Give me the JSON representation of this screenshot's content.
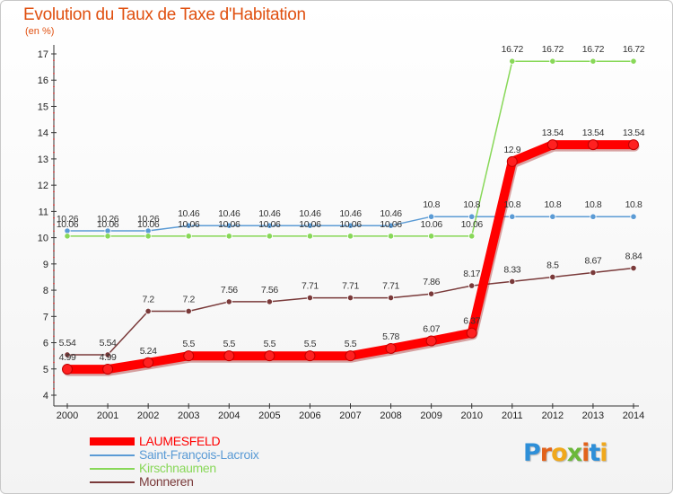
{
  "header": {
    "title": "Evolution du Taux de Taxe d'Habitation",
    "subtitle": "(en %)"
  },
  "logo": {
    "text": "Proxiti",
    "letter_colors": [
      "#2e8fd8",
      "#e2621b",
      "#f0a81c",
      "#6bb83a",
      "#e2621b",
      "#2e8fd8",
      "#f0a81c"
    ]
  },
  "chart_data": {
    "type": "line",
    "title": "Evolution du Taux de Taxe d'Habitation",
    "ylabel": "(en %)",
    "xlabel": "",
    "x": [
      "2000",
      "2001",
      "2002",
      "2003",
      "2004",
      "2005",
      "2006",
      "2007",
      "2008",
      "2009",
      "2010",
      "2011",
      "2012",
      "2013",
      "2014"
    ],
    "ylim": [
      4,
      17
    ],
    "yticks": [
      4,
      5,
      6,
      7,
      8,
      9,
      10,
      11,
      12,
      13,
      14,
      15,
      16,
      17
    ],
    "grid": false,
    "legend_position": "bottom-left",
    "series": [
      {
        "name": "LAUMESFELD",
        "color": "#ff0000",
        "emphasis": true,
        "values": [
          4.99,
          4.99,
          5.24,
          5.5,
          5.5,
          5.5,
          5.5,
          5.5,
          5.78,
          6.07,
          6.37,
          12.9,
          13.54,
          13.54,
          13.54
        ],
        "labels": [
          "4.99",
          "4.99",
          "5.24",
          "5.5",
          "5.5",
          "5.5",
          "5.5",
          "5.5",
          "5.78",
          "6.07",
          "6.37",
          "12.9",
          "13.54",
          "13.54",
          "13.54"
        ]
      },
      {
        "name": "Saint-François-Lacroix",
        "color": "#5b9bd5",
        "values": [
          10.26,
          10.26,
          10.26,
          10.46,
          10.46,
          10.46,
          10.46,
          10.46,
          10.46,
          10.8,
          10.8,
          10.8,
          10.8,
          10.8,
          10.8
        ],
        "labels": [
          "10.26",
          "10.26",
          "10.26",
          "10.46",
          "10.46",
          "10.46",
          "10.46",
          "10.46",
          "10.46",
          "10.8",
          "10.8",
          "10.8",
          "10.8",
          "10.8",
          "10.8"
        ]
      },
      {
        "name": "Kirschnaumen",
        "color": "#88d858",
        "values": [
          10.06,
          10.06,
          10.06,
          10.06,
          10.06,
          10.06,
          10.06,
          10.06,
          10.06,
          10.06,
          10.06,
          16.72,
          16.72,
          16.72,
          16.72
        ],
        "labels": [
          "10.06",
          "10.06",
          "10.06",
          "10.06",
          "10.06",
          "10.06",
          "10.06",
          "10.06",
          "10.06",
          "10.06",
          "10.06",
          "16.72",
          "16.72",
          "16.72",
          "16.72"
        ]
      },
      {
        "name": "Monneren",
        "color": "#7a3a3a",
        "values": [
          5.54,
          5.54,
          7.2,
          7.2,
          7.56,
          7.56,
          7.71,
          7.71,
          7.71,
          7.86,
          8.17,
          8.33,
          8.5,
          8.67,
          8.84
        ],
        "labels": [
          "5.54",
          "5.54",
          "7.2",
          "7.2",
          "7.56",
          "7.56",
          "7.71",
          "7.71",
          "7.71",
          "7.86",
          "8.17",
          "8.33",
          "8.5",
          "8.67",
          "8.84"
        ]
      }
    ]
  }
}
